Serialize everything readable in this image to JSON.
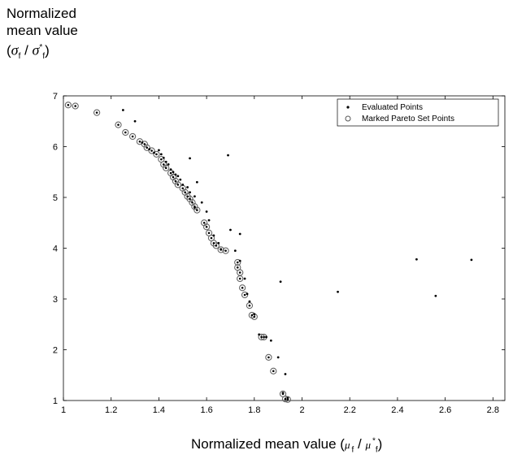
{
  "labels": {
    "y_line1": "Normalized",
    "y_line2": "mean value",
    "x_prefix": "Normalized mean value (",
    "x_suffix": ")",
    "sigma": "σ",
    "mu": "μ",
    "sub_f": "f",
    "sup_star": "*"
  },
  "chart_data": {
    "type": "scatter",
    "xlim": [
      1,
      2.85
    ],
    "ylim": [
      1,
      7
    ],
    "xticks": [
      "1",
      "1.2",
      "1.4",
      "1.6",
      "1.8",
      "2",
      "2.2",
      "2.4",
      "2.6",
      "2.8"
    ],
    "yticks": [
      "1",
      "2",
      "3",
      "4",
      "5",
      "6",
      "7"
    ],
    "grid": false,
    "legend_position": "top-right",
    "series": [
      {
        "name": "Evaluated Points",
        "marker": "dot",
        "points": [
          [
            1.25,
            6.72
          ],
          [
            1.3,
            6.5
          ],
          [
            1.33,
            6.08
          ],
          [
            1.36,
            5.95
          ],
          [
            1.38,
            5.88
          ],
          [
            1.4,
            5.93
          ],
          [
            1.41,
            5.85
          ],
          [
            1.42,
            5.78
          ],
          [
            1.43,
            5.7
          ],
          [
            1.44,
            5.65
          ],
          [
            1.45,
            5.55
          ],
          [
            1.46,
            5.5
          ],
          [
            1.47,
            5.45
          ],
          [
            1.48,
            5.42
          ],
          [
            1.49,
            5.35
          ],
          [
            1.5,
            5.25
          ],
          [
            1.52,
            5.2
          ],
          [
            1.53,
            5.77
          ],
          [
            1.56,
            5.3
          ],
          [
            1.53,
            5.1
          ],
          [
            1.55,
            5.02
          ],
          [
            1.55,
            4.8
          ],
          [
            1.58,
            4.9
          ],
          [
            1.6,
            4.72
          ],
          [
            1.61,
            4.55
          ],
          [
            1.63,
            4.25
          ],
          [
            1.65,
            4.1
          ],
          [
            1.66,
            3.98
          ],
          [
            1.69,
            5.83
          ],
          [
            1.7,
            4.36
          ],
          [
            1.72,
            3.95
          ],
          [
            1.74,
            4.28
          ],
          [
            1.74,
            3.75
          ],
          [
            1.76,
            3.4
          ],
          [
            1.77,
            3.1
          ],
          [
            1.78,
            2.95
          ],
          [
            1.8,
            2.7
          ],
          [
            1.82,
            2.3
          ],
          [
            1.85,
            2.25
          ],
          [
            1.87,
            2.18
          ],
          [
            1.9,
            1.85
          ],
          [
            1.92,
            1.15
          ],
          [
            1.93,
            1.52
          ],
          [
            1.94,
            1.05
          ],
          [
            1.91,
            3.34
          ],
          [
            2.15,
            3.14
          ],
          [
            2.48,
            3.78
          ],
          [
            2.56,
            3.06
          ],
          [
            2.71,
            3.77
          ]
        ]
      },
      {
        "name": "Marked Pareto Set Points",
        "marker": "circle",
        "points": [
          [
            1.02,
            6.82
          ],
          [
            1.05,
            6.8
          ],
          [
            1.14,
            6.67
          ],
          [
            1.23,
            6.43
          ],
          [
            1.26,
            6.28
          ],
          [
            1.29,
            6.2
          ],
          [
            1.32,
            6.1
          ],
          [
            1.34,
            6.05
          ],
          [
            1.35,
            5.98
          ],
          [
            1.37,
            5.92
          ],
          [
            1.39,
            5.85
          ],
          [
            1.41,
            5.75
          ],
          [
            1.42,
            5.65
          ],
          [
            1.43,
            5.58
          ],
          [
            1.45,
            5.48
          ],
          [
            1.46,
            5.4
          ],
          [
            1.47,
            5.32
          ],
          [
            1.48,
            5.25
          ],
          [
            1.5,
            5.18
          ],
          [
            1.51,
            5.1
          ],
          [
            1.52,
            5.02
          ],
          [
            1.53,
            4.97
          ],
          [
            1.54,
            4.9
          ],
          [
            1.55,
            4.82
          ],
          [
            1.56,
            4.75
          ],
          [
            1.59,
            4.5
          ],
          [
            1.6,
            4.42
          ],
          [
            1.61,
            4.3
          ],
          [
            1.62,
            4.2
          ],
          [
            1.63,
            4.1
          ],
          [
            1.64,
            4.05
          ],
          [
            1.66,
            3.97
          ],
          [
            1.68,
            3.95
          ],
          [
            1.73,
            3.72
          ],
          [
            1.73,
            3.62
          ],
          [
            1.74,
            3.52
          ],
          [
            1.74,
            3.4
          ],
          [
            1.75,
            3.22
          ],
          [
            1.76,
            3.08
          ],
          [
            1.78,
            2.87
          ],
          [
            1.79,
            2.68
          ],
          [
            1.8,
            2.65
          ],
          [
            1.83,
            2.25
          ],
          [
            1.84,
            2.25
          ],
          [
            1.86,
            1.85
          ],
          [
            1.88,
            1.58
          ],
          [
            1.92,
            1.13
          ],
          [
            1.93,
            1.03
          ],
          [
            1.94,
            1.02
          ]
        ]
      }
    ]
  }
}
